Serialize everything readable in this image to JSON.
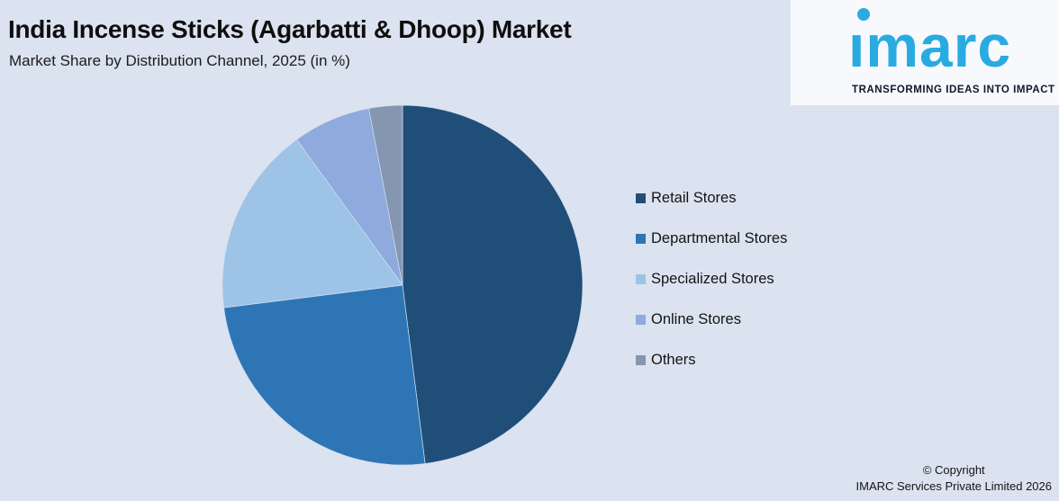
{
  "page": {
    "background": "#dbe2f0"
  },
  "header": {
    "title": "India Incense Sticks (Agarbatti & Dhoop) Market",
    "subtitle": "Market Share by Distribution Channel, 2025 (in %)"
  },
  "logo": {
    "brand": "imarc",
    "brand_display": "ımarc",
    "tagline": "TRANSFORMING IDEAS INTO IMPACT",
    "brand_color": "#29abe2",
    "panel_color": "#f8f9fc"
  },
  "chart_data": {
    "type": "pie",
    "title": "India Incense Sticks (Agarbatti & Dhoop) Market",
    "subtitle": "Market Share by Distribution Channel, 2025 (in %)",
    "values_unit": "%",
    "start_angle_deg": 0,
    "direction": "clockwise",
    "legend_position": "right",
    "slices": [
      {
        "label": "Retail Stores",
        "value": 48,
        "color": "#1f4e79"
      },
      {
        "label": "Departmental Stores",
        "value": 25,
        "color": "#2e75b6"
      },
      {
        "label": "Specialized Stores",
        "value": 17,
        "color": "#9dc3e6"
      },
      {
        "label": "Online Stores",
        "value": 7,
        "color": "#8faadc"
      },
      {
        "label": "Others",
        "value": 3,
        "color": "#8496b0"
      }
    ]
  },
  "footer": {
    "copyright_line1": "© Copyright",
    "copyright_line2": "IMARC Services Private Limited 2026"
  }
}
